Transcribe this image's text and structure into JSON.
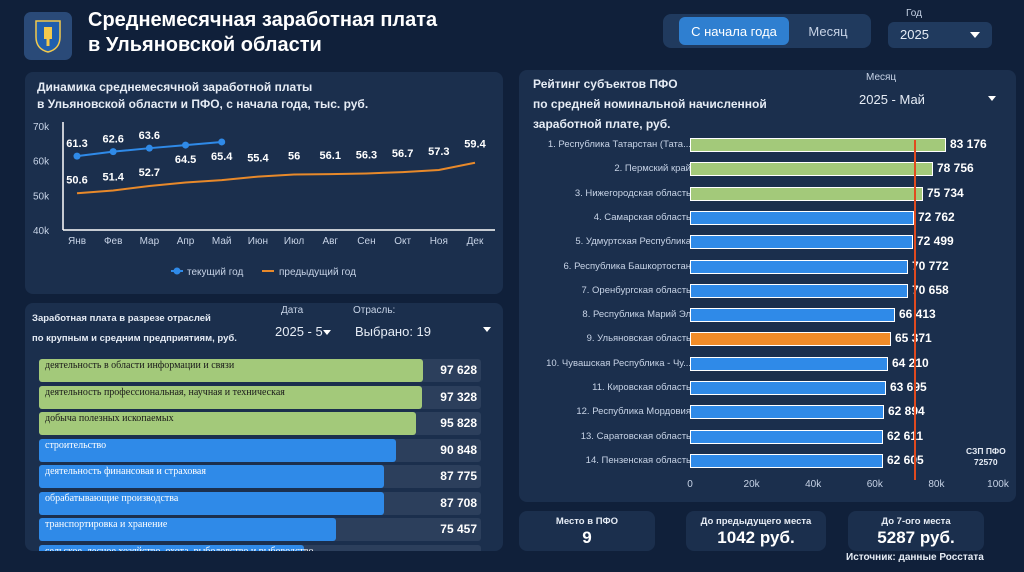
{
  "header": {
    "title_line1": "Среднемесячная заработная плата",
    "title_line2": "в Ульяновской области",
    "toggle": {
      "ytd_label": "С начала года",
      "month_label": "Месяц",
      "active": "ytd"
    },
    "year": {
      "label": "Год",
      "value": "2025"
    },
    "colors": {
      "accent": "#2f7fd0",
      "background": "#10203a",
      "panel": "#1b2f4d"
    },
    "logo_icon": "coat-of-arms-icon"
  },
  "line_panel": {
    "title_line1": "Динамика среднемесячной заработной платы",
    "title_line2": "в Ульяновской области и ПФО, с начала года,  тыс. руб.",
    "legend": {
      "current": "текущий год",
      "previous": "предыдущий год"
    }
  },
  "industry_panel": {
    "title_line1": "Заработная плата в разрезе отраслей",
    "title_line2": "по крупным и средним предприятиям, руб.",
    "date_label": "Дата",
    "date_value": "2025 - 5",
    "sector_label": "Отрасль:",
    "sector_value": "Выбрано: 19",
    "max_value": 97628,
    "rows": [
      {
        "name": "деятельность в области информации и связи",
        "value": "97 628",
        "amount": 97628,
        "color": "#a3c97a",
        "dark_text": true
      },
      {
        "name": "деятельность профессиональная, научная и техническая",
        "value": "97 328",
        "amount": 97328,
        "color": "#a3c97a",
        "dark_text": true
      },
      {
        "name": "добыча полезных ископаемых",
        "value": "95 828",
        "amount": 95828,
        "color": "#a3c97a",
        "dark_text": true
      },
      {
        "name": "строительство",
        "value": "90 848",
        "amount": 90848,
        "color": "#2f8ae8",
        "dark_text": false
      },
      {
        "name": "деятельность финансовая и страховая",
        "value": "87 775",
        "amount": 87775,
        "color": "#2f8ae8",
        "dark_text": false
      },
      {
        "name": "обрабатывающие производства",
        "value": "87 708",
        "amount": 87708,
        "color": "#2f8ae8",
        "dark_text": false
      },
      {
        "name": "транспортировка и хранение",
        "value": "75 457",
        "amount": 75457,
        "color": "#2f8ae8",
        "dark_text": false
      },
      {
        "name": "сельское, лесное хозяйство, охота, рыболовство и рыбоводство",
        "value": "",
        "amount": 67400,
        "color": "#2f8ae8",
        "dark_text": false
      }
    ]
  },
  "rank_panel": {
    "title_line1": "Рейтинг субъектов ПФО",
    "title_line2": "по средней номинальной начисленной",
    "title_line3": "заработной плате, руб.",
    "month_label": "Месяц",
    "month_value": "2025 - Май",
    "axis_max": 100000,
    "ticks": [
      "0",
      "20k",
      "40k",
      "60k",
      "80k",
      "100k"
    ],
    "reference": {
      "name": "СЗП ПФО",
      "value_label": "72570",
      "value": 72570
    },
    "rows": [
      {
        "name": "1. Республика Татарстан (Тата...",
        "value": "83 176",
        "amount": 83176,
        "color": "#a3c97a"
      },
      {
        "name": "2. Пермский край",
        "value": "78 756",
        "amount": 78756,
        "color": "#a3c97a"
      },
      {
        "name": "3. Нижегородская область",
        "value": "75 734",
        "amount": 75734,
        "color": "#a3c97a"
      },
      {
        "name": "4. Самарская область",
        "value": "72 762",
        "amount": 72762,
        "color": "#2f8ae8"
      },
      {
        "name": "5. Удмуртская Республика",
        "value": "72 499",
        "amount": 72499,
        "color": "#2f8ae8"
      },
      {
        "name": "6. Республика Башкортостан",
        "value": "70 772",
        "amount": 70772,
        "color": "#2f8ae8"
      },
      {
        "name": "7. Оренбургская область",
        "value": "70 658",
        "amount": 70658,
        "color": "#2f8ae8"
      },
      {
        "name": "8. Республика Марий Эл",
        "value": "66 413",
        "amount": 66413,
        "color": "#2f8ae8"
      },
      {
        "name": "9. Ульяновская область",
        "value": "65 371",
        "amount": 65371,
        "color": "#f28c28"
      },
      {
        "name": "10. Чувашская Республика - Чу...",
        "value": "64 210",
        "amount": 64210,
        "color": "#2f8ae8"
      },
      {
        "name": "11. Кировская область",
        "value": "63 695",
        "amount": 63695,
        "color": "#2f8ae8"
      },
      {
        "name": "12. Республика Мордовия",
        "value": "62 894",
        "amount": 62894,
        "color": "#2f8ae8"
      },
      {
        "name": "13. Саратовская область",
        "value": "62 611",
        "amount": 62611,
        "color": "#2f8ae8"
      },
      {
        "name": "14. Пензенская область",
        "value": "62 605",
        "amount": 62605,
        "color": "#2f8ae8"
      }
    ]
  },
  "kpis": {
    "place": {
      "label": "Место в ПФО",
      "value": "9"
    },
    "prev_place": {
      "label": "До предыдущего места",
      "value": "1042 руб."
    },
    "seventh_place": {
      "label": "До 7-ого места",
      "value": "5287 руб."
    }
  },
  "source": "Источник: данные Росстата",
  "chart_data": {
    "type": "line",
    "categories": [
      "Янв",
      "Фев",
      "Мар",
      "Апр",
      "Май",
      "Июн",
      "Июл",
      "Авг",
      "Сен",
      "Окт",
      "Ноя",
      "Дек"
    ],
    "series": [
      {
        "name": "текущий год",
        "values": [
          61.3,
          62.6,
          63.6,
          64.5,
          65.4,
          null,
          null,
          null,
          null,
          null,
          null,
          null
        ],
        "color": "#2f8ae8"
      },
      {
        "name": "предыдущий год",
        "values": [
          50.6,
          51.4,
          52.7,
          53.7,
          54.4,
          55.4,
          56,
          56.1,
          56.3,
          56.7,
          57.3,
          59.4
        ],
        "color": "#e8892a"
      }
    ],
    "yticks": [
      "40k",
      "50k",
      "60k",
      "70k"
    ],
    "ylim": [
      40,
      70
    ],
    "labels_current": [
      "61.3",
      "62.6",
      "63.6",
      "64.5",
      "65.4"
    ],
    "labels_previous": [
      "50.6",
      "51.4",
      "52.7",
      "",
      "",
      "55.4",
      "56",
      "56.1",
      "56.3",
      "56.7",
      "57.3",
      "59.4"
    ]
  }
}
